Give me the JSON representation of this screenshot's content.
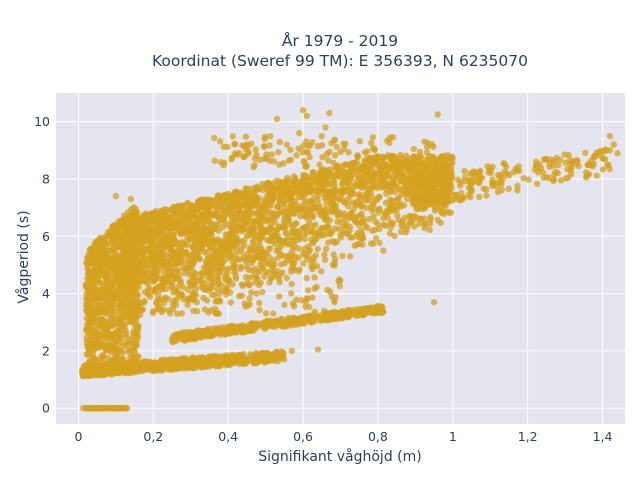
{
  "chart_data": {
    "type": "scatter",
    "title_line1": "År 1979 - 2019",
    "title_line2": "Koordinat (Sweref 99 TM): E 356393, N 6235070",
    "xlabel": "Signifikant våghöjd (m)",
    "ylabel": "Vågperiod (s)",
    "xlim": [
      -0.06,
      1.46
    ],
    "ylim": [
      -0.55,
      11.0
    ],
    "x_ticks": [
      0,
      0.2,
      0.4,
      0.6,
      0.8,
      1.0,
      1.2,
      1.4
    ],
    "x_tick_labels": [
      "0",
      "0,2",
      "0,4",
      "0,6",
      "0,8",
      "1",
      "1,2",
      "1,4"
    ],
    "y_ticks": [
      0,
      2,
      4,
      6,
      8,
      10
    ],
    "y_tick_labels": [
      "0",
      "2",
      "4",
      "6",
      "8",
      "10"
    ],
    "grid": true,
    "marker_color": "#D4A21F",
    "plot_bgcolor": "#E5E5EF",
    "clusters": [
      {
        "name": "zero_period",
        "x": [
          0.01,
          0.13
        ],
        "y": [
          0,
          0
        ]
      },
      {
        "name": "low_band",
        "x": [
          0.01,
          0.55
        ],
        "y_lower": [
          1.1,
          1.65
        ],
        "y_upper": [
          1.5,
          2.0
        ]
      },
      {
        "name": "swell_line",
        "x": [
          0.25,
          0.82
        ],
        "y_lower": [
          2.3,
          3.35
        ],
        "y_upper": [
          2.6,
          3.6
        ]
      },
      {
        "name": "main_cloud",
        "x": [
          0.02,
          1.42
        ],
        "y_lower": [
          1.3,
          7.0
        ],
        "y_upper": [
          6.5,
          9.3
        ]
      }
    ],
    "outliers": [
      {
        "x": 0.6,
        "y": 10.4
      },
      {
        "x": 0.61,
        "y": 10.2
      },
      {
        "x": 0.67,
        "y": 10.3
      },
      {
        "x": 0.53,
        "y": 10.1
      },
      {
        "x": 0.96,
        "y": 10.25
      },
      {
        "x": 0.66,
        "y": 9.8
      },
      {
        "x": 0.59,
        "y": 9.6
      },
      {
        "x": 1.42,
        "y": 9.5
      },
      {
        "x": 1.43,
        "y": 9.2
      },
      {
        "x": 1.44,
        "y": 8.9
      },
      {
        "x": 1.38,
        "y": 8.8
      },
      {
        "x": 1.32,
        "y": 8.6
      },
      {
        "x": 1.25,
        "y": 8.7
      },
      {
        "x": 0.95,
        "y": 3.7
      },
      {
        "x": 0.64,
        "y": 2.05
      },
      {
        "x": 0.57,
        "y": 2.0
      },
      {
        "x": 0.14,
        "y": 7.3
      },
      {
        "x": 0.11,
        "y": 2.7
      },
      {
        "x": 0.1,
        "y": 7.4
      }
    ]
  }
}
